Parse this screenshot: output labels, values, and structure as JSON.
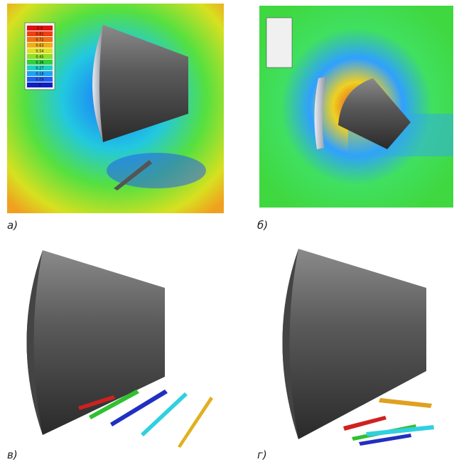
{
  "panels": [
    {
      "label": "а)",
      "legend": [
        "0.9",
        "0.81",
        "0.72",
        "0.63",
        "0.54",
        "0.45",
        "0.36",
        "0.27",
        "0.18",
        "0.09",
        "0"
      ]
    },
    {
      "label": "б)"
    },
    {
      "label": "в)"
    },
    {
      "label": "г)"
    }
  ]
}
